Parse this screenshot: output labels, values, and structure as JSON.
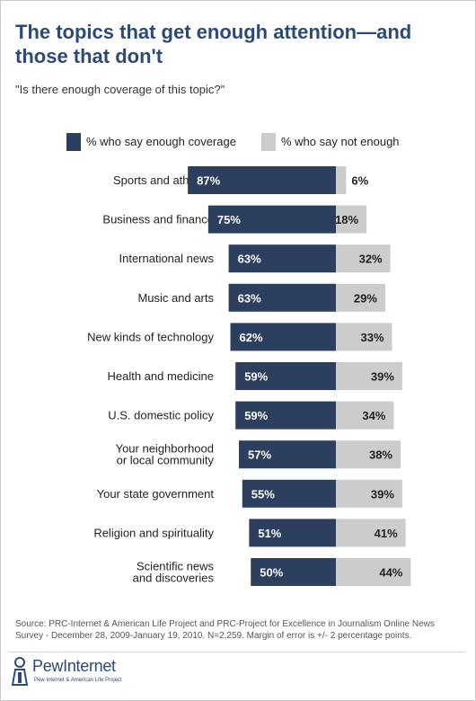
{
  "header": {
    "title_line1": "The topics that get enough attention—and",
    "title_line2": "those that don't",
    "subtitle": "\"Is there enough coverage of this topic?\""
  },
  "colors": {
    "enough": "#2c3f5e",
    "not_enough": "#cccccc",
    "title": "#2c4a73"
  },
  "chart_data": {
    "type": "bar",
    "orientation": "horizontal-diverging",
    "categories": [
      [
        "Sports and athletes"
      ],
      [
        "Business and finance"
      ],
      [
        "International news"
      ],
      [
        "Music and arts"
      ],
      [
        "New kinds of technology"
      ],
      [
        "Health and medicine"
      ],
      [
        "U.S. domestic policy"
      ],
      [
        "Your neighborhood",
        "or local community"
      ],
      [
        "Your state government"
      ],
      [
        "Religion and spirituality"
      ],
      [
        "Scientific news",
        "and discoveries"
      ]
    ],
    "series": [
      {
        "name": "% who say enough coverage",
        "values": [
          87,
          75,
          63,
          63,
          62,
          59,
          59,
          57,
          55,
          51,
          50
        ]
      },
      {
        "name": "% who say not enough",
        "values": [
          6,
          18,
          32,
          29,
          33,
          39,
          34,
          38,
          39,
          41,
          44
        ]
      }
    ],
    "value_suffix": "%",
    "legend_position": "top",
    "grid": false
  },
  "footer": {
    "source": "Source: PRC-Internet & American Life Project and PRC-Project for Excellence in Journalism Online News Survey - December 28, 2009-January 19, 2010. N=2,259. Margin of error is +/- 2 percentage points.",
    "logo_text": "PewInternet",
    "logo_subtext": "Pew Internet & American Life Project"
  }
}
